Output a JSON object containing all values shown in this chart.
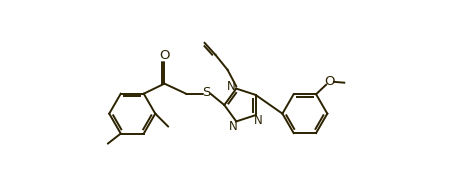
{
  "bg_color": "#ffffff",
  "line_color": "#2b2200",
  "line_width": 1.4,
  "font_size": 8.5,
  "figsize": [
    4.63,
    1.87
  ],
  "dpi": 100,
  "xlim": [
    0,
    10.0
  ],
  "ylim": [
    0,
    6.5
  ]
}
